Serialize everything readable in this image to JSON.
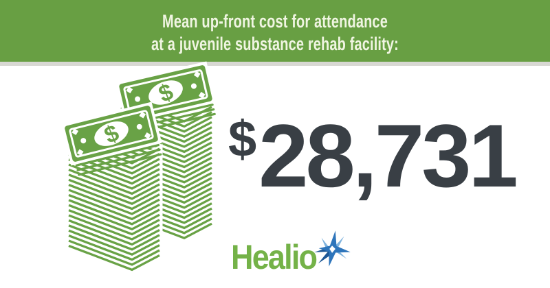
{
  "theme": {
    "bg": "#ffffff",
    "banner-green": "#689f43",
    "banner-text": "#f0f5e2",
    "divider-gray": "#d8d8d3",
    "art-green": "#69a246",
    "number-dark": "#393f45",
    "healio-green": "#74b248",
    "star-blue": "#2e75bb",
    "star-navy": "#1d5795",
    "star-light": "#7fb3de"
  },
  "header": {
    "line1": "Mean up-front cost for attendance",
    "line2": "at a juvenile substance rehab facility:"
  },
  "main": {
    "currency": "$",
    "value": "28,731"
  },
  "illustration": {
    "label": "two stacks of dollar bills",
    "bill_symbol": "$"
  },
  "footer": {
    "brand": "Healio"
  },
  "chart_data": {
    "type": "table",
    "title": "Mean up-front cost for attendance at a juvenile substance rehab facility:",
    "categories": [
      "Mean up-front cost"
    ],
    "values": [
      28731
    ],
    "value_format": "USD",
    "annotations": [
      "$28,731"
    ],
    "source_brand": "Healio"
  }
}
